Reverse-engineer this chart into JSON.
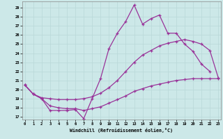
{
  "xlabel": "Windchill (Refroidissement éolien,°C)",
  "bg_color": "#cce8e8",
  "grid_color": "#aacccc",
  "line_color": "#993399",
  "yticks": [
    17,
    18,
    19,
    20,
    21,
    22,
    23,
    24,
    25,
    26,
    27,
    28,
    29
  ],
  "xticks": [
    0,
    1,
    2,
    3,
    4,
    5,
    6,
    7,
    8,
    9,
    10,
    11,
    12,
    13,
    14,
    15,
    16,
    17,
    18,
    19,
    20,
    21,
    22,
    23
  ],
  "line1_x": [
    0,
    1,
    2,
    3,
    4,
    5,
    6,
    7,
    8,
    9,
    10,
    11,
    12,
    13,
    14,
    15,
    16,
    17,
    18,
    19,
    20,
    21,
    22
  ],
  "line1_y": [
    20.5,
    19.5,
    19.0,
    17.7,
    17.7,
    17.7,
    17.8,
    16.8,
    19.0,
    21.2,
    24.5,
    26.2,
    27.5,
    29.3,
    27.2,
    27.8,
    28.2,
    26.2,
    26.2,
    25.0,
    24.2,
    22.8,
    22.0
  ],
  "line2_x": [
    0,
    1,
    2,
    3,
    4,
    5,
    6,
    7,
    8,
    9,
    10,
    11,
    12,
    13,
    14,
    15,
    16,
    17,
    18,
    19,
    20,
    21,
    22,
    23
  ],
  "line2_y": [
    20.5,
    19.5,
    19.1,
    19.0,
    18.9,
    18.9,
    18.9,
    19.0,
    19.2,
    19.6,
    20.2,
    21.0,
    22.0,
    23.0,
    23.8,
    24.3,
    24.8,
    25.1,
    25.3,
    25.5,
    25.3,
    25.0,
    24.3,
    21.3
  ],
  "line3_x": [
    0,
    1,
    2,
    3,
    4,
    5,
    6,
    7,
    8,
    9,
    10,
    11,
    12,
    13,
    14,
    15,
    16,
    17,
    18,
    19,
    20,
    21,
    22,
    23
  ],
  "line3_y": [
    20.5,
    19.5,
    19.0,
    18.2,
    18.0,
    17.9,
    17.9,
    17.7,
    17.9,
    18.1,
    18.5,
    18.9,
    19.3,
    19.8,
    20.1,
    20.4,
    20.6,
    20.8,
    21.0,
    21.1,
    21.2,
    21.2,
    21.2,
    21.2
  ]
}
